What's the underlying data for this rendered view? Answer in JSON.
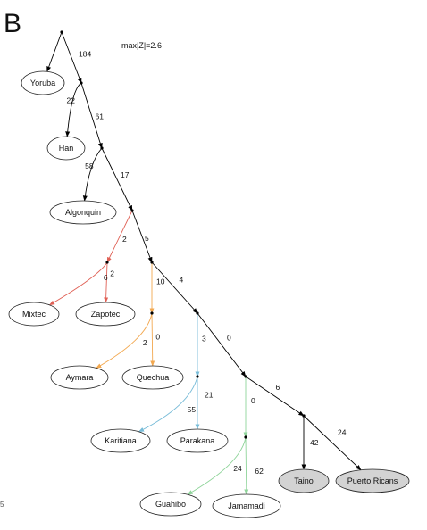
{
  "panel_letter": "B",
  "statistic_label": "max|Z|=2.6",
  "corner_mark": "5",
  "colors": {
    "default": "#000000",
    "mesoamerica": "#e06055",
    "andes": "#f2a850",
    "amazon_tupi": "#78bcd8",
    "amazon_arawak": "#8fd49a",
    "leaf_fill": "#ffffff",
    "target_fill": "#d3d3d3"
  },
  "tree": {
    "nodes": [
      {
        "id": "n1"
      },
      {
        "id": "n2"
      },
      {
        "id": "n3"
      },
      {
        "id": "n4"
      },
      {
        "id": "n5"
      },
      {
        "id": "n6"
      },
      {
        "id": "n7"
      },
      {
        "id": "n8"
      },
      {
        "id": "n9"
      },
      {
        "id": "n10"
      },
      {
        "id": "n11"
      },
      {
        "id": "n12"
      },
      {
        "id": "n13"
      }
    ],
    "leaves": [
      {
        "id": "yoruba",
        "label": "Yoruba",
        "highlight": false
      },
      {
        "id": "han",
        "label": "Han",
        "highlight": false
      },
      {
        "id": "algonquin",
        "label": "Algonquin",
        "highlight": false
      },
      {
        "id": "mixtec",
        "label": "Mixtec",
        "highlight": false
      },
      {
        "id": "zapotec",
        "label": "Zapotec",
        "highlight": false
      },
      {
        "id": "aymara",
        "label": "Aymara",
        "highlight": false
      },
      {
        "id": "quechua",
        "label": "Quechua",
        "highlight": false
      },
      {
        "id": "karitiana",
        "label": "Karitiana",
        "highlight": false
      },
      {
        "id": "parakana",
        "label": "Parakana",
        "highlight": false
      },
      {
        "id": "guahibo",
        "label": "Guahibo",
        "highlight": false
      },
      {
        "id": "jamamadi",
        "label": "Jamamadi",
        "highlight": false
      },
      {
        "id": "taino",
        "label": "Taino",
        "highlight": true
      },
      {
        "id": "puerto_ricans",
        "label": "Puerto Ricans",
        "highlight": true
      }
    ],
    "edges": [
      {
        "from": "n1",
        "to": "yoruba",
        "weight": "",
        "color": "default"
      },
      {
        "from": "n1",
        "to": "n2",
        "weight": "184",
        "color": "default"
      },
      {
        "from": "n2",
        "to": "han",
        "weight": "22",
        "color": "default"
      },
      {
        "from": "n2",
        "to": "n3",
        "weight": "61",
        "color": "default"
      },
      {
        "from": "n3",
        "to": "algonquin",
        "weight": "58",
        "color": "default"
      },
      {
        "from": "n3",
        "to": "n4",
        "weight": "17",
        "color": "default"
      },
      {
        "from": "n4",
        "to": "n5",
        "weight": "2",
        "color": "mesoamerica"
      },
      {
        "from": "n4",
        "to": "n6",
        "weight": "5",
        "color": "default"
      },
      {
        "from": "n5",
        "to": "mixtec",
        "weight": "6",
        "color": "mesoamerica"
      },
      {
        "from": "n5",
        "to": "zapotec",
        "weight": "2",
        "color": "mesoamerica"
      },
      {
        "from": "n6",
        "to": "n7",
        "weight": "10",
        "color": "andes"
      },
      {
        "from": "n6",
        "to": "n8",
        "weight": "4",
        "color": "default"
      },
      {
        "from": "n7",
        "to": "aymara",
        "weight": "2",
        "color": "andes"
      },
      {
        "from": "n7",
        "to": "quechua",
        "weight": "0",
        "color": "andes"
      },
      {
        "from": "n8",
        "to": "n9",
        "weight": "3",
        "color": "amazon_tupi"
      },
      {
        "from": "n8",
        "to": "n10",
        "weight": "0",
        "color": "default"
      },
      {
        "from": "n9",
        "to": "karitiana",
        "weight": "55",
        "color": "amazon_tupi"
      },
      {
        "from": "n9",
        "to": "parakana",
        "weight": "21",
        "color": "amazon_tupi"
      },
      {
        "from": "n10",
        "to": "n11",
        "weight": "0",
        "color": "amazon_arawak"
      },
      {
        "from": "n10",
        "to": "n12",
        "weight": "6",
        "color": "default"
      },
      {
        "from": "n11",
        "to": "guahibo",
        "weight": "24",
        "color": "amazon_arawak"
      },
      {
        "from": "n11",
        "to": "jamamadi",
        "weight": "62",
        "color": "amazon_arawak"
      },
      {
        "from": "n12",
        "to": "taino",
        "weight": "42",
        "color": "default"
      },
      {
        "from": "n12",
        "to": "puerto_ricans",
        "weight": "24",
        "color": "default"
      }
    ]
  }
}
